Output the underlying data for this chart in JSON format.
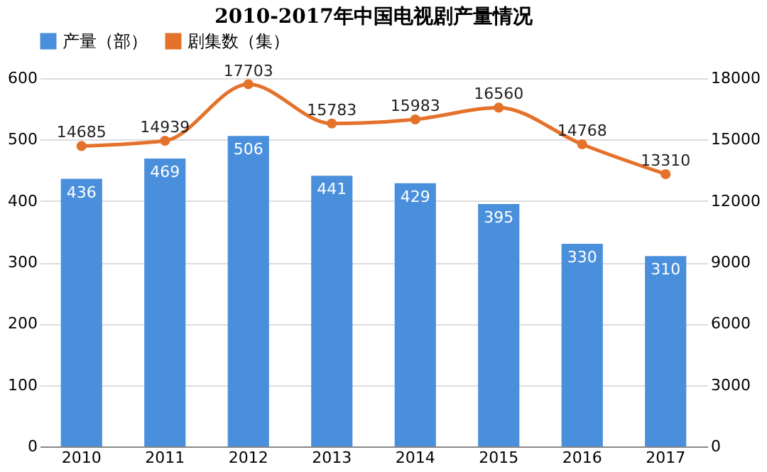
{
  "chart_data": {
    "type": "bar",
    "title": "2010-2017年中国电视剧产量情况",
    "categories": [
      "2010",
      "2011",
      "2012",
      "2013",
      "2014",
      "2015",
      "2016",
      "2017"
    ],
    "series": [
      {
        "name": "产量（部）",
        "color": "#4a8fdb",
        "values": [
          436,
          469,
          506,
          441,
          429,
          395,
          330,
          310
        ]
      },
      {
        "name": "剧集数（集）",
        "type": "line",
        "axis": "y2",
        "color": "#e5722b",
        "values": [
          14685,
          14939,
          17703,
          15783,
          15983,
          16560,
          14768,
          13310
        ]
      }
    ],
    "ylim": [
      0,
      600
    ],
    "yticks": [
      0,
      100,
      200,
      300,
      400,
      500,
      600
    ],
    "y2lim": [
      0,
      18000
    ],
    "y2ticks": [
      0,
      3000,
      6000,
      9000,
      12000,
      15000,
      18000
    ],
    "grid": "y",
    "legend": "top",
    "marker": "circle",
    "data_labels": true
  }
}
